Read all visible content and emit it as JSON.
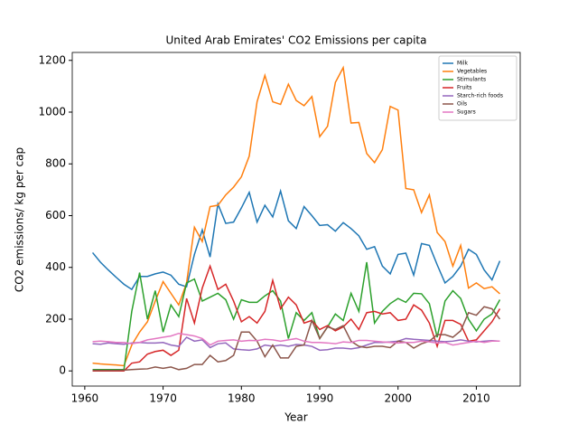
{
  "chart_data": {
    "type": "line",
    "title": "United Arab Emirates' CO2 Emissions per capita",
    "xlabel": "Year",
    "ylabel": "CO2 emissions/ kg per cap",
    "x": [
      1961,
      1962,
      1963,
      1964,
      1965,
      1966,
      1967,
      1968,
      1969,
      1970,
      1971,
      1972,
      1973,
      1974,
      1975,
      1976,
      1977,
      1978,
      1979,
      1980,
      1981,
      1982,
      1983,
      1984,
      1985,
      1986,
      1987,
      1988,
      1989,
      1990,
      1991,
      1992,
      1993,
      1994,
      1995,
      1996,
      1997,
      1998,
      1999,
      2000,
      2001,
      2002,
      2003,
      2004,
      2005,
      2006,
      2007,
      2008,
      2009,
      2010,
      2011,
      2012,
      2013
    ],
    "series": [
      {
        "name": "Milk",
        "color": "#1f77b4",
        "values": [
          457,
          420,
          390,
          362,
          335,
          315,
          365,
          365,
          375,
          382,
          370,
          335,
          325,
          450,
          545,
          440,
          645,
          570,
          575,
          630,
          690,
          575,
          640,
          595,
          695,
          580,
          550,
          635,
          600,
          562,
          565,
          540,
          573,
          550,
          522,
          470,
          480,
          405,
          375,
          450,
          455,
          370,
          492,
          485,
          410,
          340,
          365,
          405,
          470,
          450,
          390,
          352,
          425
        ]
      },
      {
        "name": "Vegetables",
        "color": "#ff7f0e",
        "values": [
          30,
          27,
          25,
          23,
          20,
          100,
          150,
          190,
          270,
          345,
          300,
          255,
          340,
          555,
          500,
          635,
          640,
          680,
          710,
          750,
          830,
          1040,
          1142,
          1040,
          1030,
          1108,
          1045,
          1025,
          1060,
          905,
          945,
          1115,
          1172,
          958,
          960,
          840,
          805,
          855,
          1022,
          1008,
          705,
          700,
          612,
          680,
          535,
          500,
          405,
          485,
          320,
          340,
          318,
          325,
          298
        ]
      },
      {
        "name": "Stimulants",
        "color": "#2ca02c",
        "values": [
          5,
          5,
          5,
          5,
          5,
          230,
          380,
          200,
          310,
          150,
          255,
          210,
          340,
          355,
          270,
          285,
          300,
          275,
          200,
          275,
          265,
          265,
          290,
          310,
          270,
          125,
          225,
          195,
          225,
          125,
          170,
          220,
          195,
          300,
          230,
          420,
          185,
          230,
          260,
          280,
          265,
          300,
          298,
          260,
          130,
          270,
          310,
          280,
          200,
          155,
          200,
          220,
          275
        ]
      },
      {
        "name": "Fruits",
        "color": "#d62728",
        "values": [
          0,
          0,
          0,
          0,
          0,
          30,
          35,
          65,
          75,
          80,
          60,
          80,
          280,
          185,
          320,
          405,
          315,
          335,
          270,
          190,
          210,
          185,
          230,
          350,
          240,
          285,
          255,
          185,
          195,
          160,
          175,
          155,
          170,
          200,
          160,
          225,
          230,
          220,
          225,
          195,
          200,
          255,
          235,
          185,
          95,
          195,
          195,
          180,
          115,
          120,
          155,
          190,
          240
        ]
      },
      {
        "name": "Starch-rich foods",
        "color": "#9467bd",
        "values": [
          105,
          103,
          108,
          105,
          103,
          108,
          110,
          108,
          108,
          110,
          100,
          95,
          130,
          115,
          120,
          90,
          105,
          108,
          85,
          82,
          80,
          85,
          100,
          95,
          100,
          95,
          102,
          100,
          95,
          80,
          82,
          88,
          88,
          85,
          90,
          100,
          110,
          110,
          112,
          115,
          125,
          122,
          120,
          118,
          115,
          113,
          115,
          120,
          115,
          112,
          115,
          117,
          115
        ]
      },
      {
        "name": "Oils",
        "color": "#8c564b",
        "values": [
          2,
          2,
          2,
          2,
          3,
          5,
          7,
          8,
          15,
          10,
          15,
          5,
          10,
          25,
          25,
          60,
          35,
          40,
          60,
          150,
          150,
          115,
          55,
          100,
          50,
          50,
          95,
          100,
          195,
          125,
          170,
          160,
          175,
          115,
          95,
          90,
          95,
          95,
          90,
          115,
          110,
          88,
          105,
          115,
          140,
          140,
          130,
          155,
          225,
          215,
          248,
          240,
          200
        ]
      },
      {
        "name": "Sugars",
        "color": "#e377c2",
        "values": [
          113,
          115,
          113,
          110,
          110,
          105,
          110,
          120,
          125,
          130,
          135,
          145,
          140,
          135,
          125,
          100,
          115,
          118,
          120,
          115,
          118,
          117,
          122,
          120,
          115,
          120,
          125,
          115,
          110,
          110,
          108,
          105,
          112,
          110,
          118,
          118,
          115,
          112,
          110,
          108,
          110,
          110,
          115,
          112,
          108,
          110,
          100,
          105,
          110,
          115,
          110,
          115,
          115
        ]
      }
    ],
    "xlim": [
      1958.4,
      2015.6
    ],
    "xticks": [
      1960,
      1970,
      1980,
      1990,
      2000,
      2010
    ],
    "ylim": [
      -58.6,
      1230.6
    ],
    "yticks": [
      0,
      200,
      400,
      600,
      800,
      1000,
      1200
    ],
    "legend": "upper right"
  }
}
